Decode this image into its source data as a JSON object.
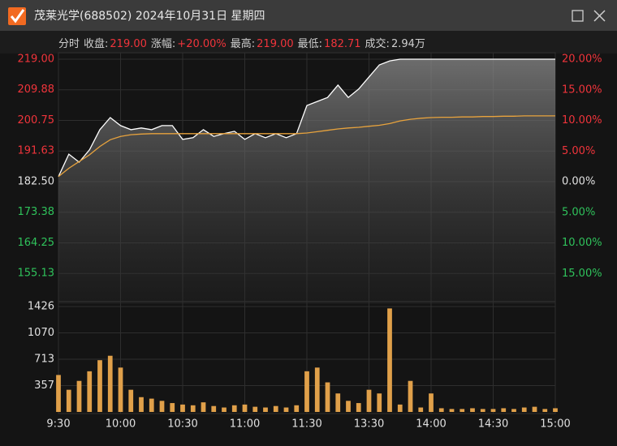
{
  "window": {
    "title": "茂莱光学(688502) 2024年10月31日 星期四"
  },
  "info": {
    "mode": "分时",
    "items": [
      {
        "label": "收盘:",
        "value": "219.00",
        "color": "#f0343b"
      },
      {
        "label": "涨幅:",
        "value": "+20.00%",
        "color": "#f0343b"
      },
      {
        "label": "最高:",
        "value": "219.00",
        "color": "#f0343b"
      },
      {
        "label": "最低:",
        "value": "182.71",
        "color": "#f0343b"
      },
      {
        "label": "成交:",
        "value": "2.94万",
        "color": "#cfcfcf"
      }
    ]
  },
  "chart_data": [
    {
      "type": "line",
      "ylim": [
        146,
        219
      ],
      "yticks": [
        {
          "value": 219,
          "label": "219.00"
        },
        209.88,
        200.75,
        191.63,
        {
          "value": 182.5,
          "label": "182.50"
        },
        173.38,
        164.25,
        155.13
      ],
      "y2lim": [
        -20,
        20
      ],
      "y2ticks": [
        {
          "value": 20,
          "label": "20.00%"
        },
        {
          "value": 15,
          "label": "15.00%"
        },
        {
          "value": 10,
          "label": "10.00%"
        },
        {
          "value": 5,
          "label": "5.00%"
        },
        {
          "value": 0,
          "label": "0.00%"
        },
        {
          "value": -5,
          "label": "5.00%"
        },
        {
          "value": -10,
          "label": "10.00%"
        },
        {
          "value": -15,
          "label": "15.00%"
        }
      ],
      "up_color": "#f0343b",
      "down_color": "#2fc25b",
      "flat_color": "#e0e0e0",
      "series": [
        {
          "color": "#ffffff",
          "values": [
            184.0,
            190.7,
            188.3,
            192.0,
            198.0,
            201.6,
            199.2,
            198.0,
            198.5,
            198.0,
            199.2,
            199.2,
            195.1,
            195.6,
            198.0,
            196.0,
            196.8,
            197.5,
            195.1,
            196.8,
            195.6,
            196.8,
            195.6,
            196.8,
            205.2,
            206.4,
            207.6,
            211.3,
            207.6,
            210.1,
            213.7,
            217.3,
            218.5,
            219.0,
            219.0,
            219.0,
            219.0,
            219.0,
            219.0,
            219.0,
            219.0,
            219.0,
            219.0,
            219.0,
            219.0,
            219.0,
            219.0,
            219.0,
            219.0
          ]
        },
        {
          "color": "#e8a33d",
          "values": [
            184.0,
            186.5,
            188.5,
            190.5,
            193.0,
            195.0,
            196.0,
            196.5,
            196.7,
            196.8,
            196.8,
            196.8,
            196.8,
            196.8,
            196.8,
            196.8,
            196.8,
            196.8,
            196.8,
            196.8,
            196.8,
            196.8,
            196.8,
            196.8,
            197.0,
            197.4,
            197.8,
            198.2,
            198.5,
            198.7,
            199.0,
            199.3,
            199.8,
            200.6,
            201.1,
            201.4,
            201.6,
            201.7,
            201.7,
            201.8,
            201.8,
            201.9,
            201.9,
            202.0,
            202.0,
            202.1,
            202.1,
            202.1,
            202.1
          ]
        }
      ]
    },
    {
      "type": "bar",
      "ylim": [
        0,
        1426
      ],
      "yticks": [
        1426,
        1070,
        713,
        357
      ],
      "color": "#e0a04a",
      "categories": [
        "9:30",
        null,
        null,
        null,
        null,
        null,
        "10:00",
        null,
        null,
        null,
        null,
        null,
        "10:30",
        null,
        null,
        null,
        null,
        null,
        "11:00",
        null,
        null,
        null,
        null,
        null,
        "11:30",
        null,
        null,
        null,
        null,
        null,
        "13:30",
        null,
        null,
        null,
        null,
        null,
        "14:00",
        null,
        null,
        null,
        null,
        null,
        "14:30",
        null,
        null,
        null,
        null,
        null,
        "15:00"
      ],
      "values": [
        500,
        300,
        420,
        550,
        700,
        760,
        600,
        300,
        200,
        180,
        150,
        120,
        100,
        90,
        130,
        80,
        60,
        90,
        100,
        70,
        60,
        80,
        60,
        90,
        550,
        600,
        400,
        250,
        150,
        120,
        300,
        250,
        1400,
        100,
        420,
        60,
        250,
        50,
        40,
        40,
        50,
        40,
        40,
        50,
        40,
        60,
        70,
        40,
        50
      ]
    }
  ]
}
